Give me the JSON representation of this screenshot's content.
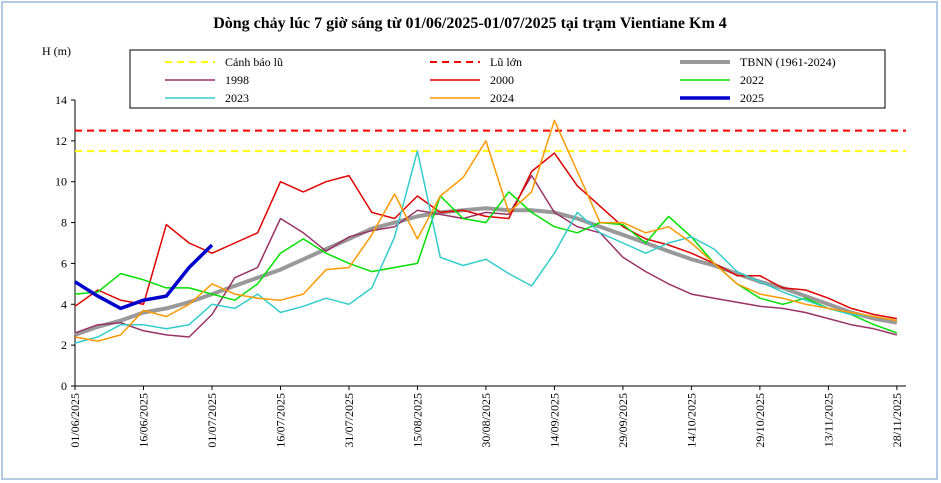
{
  "chart_data": {
    "type": "line",
    "title": "Dòng chảy lúc 7 giờ sáng từ 01/06/2025-01/07/2025 tại trạm Vientiane Km 4",
    "y_label": "H (m)",
    "x": [
      "01/06/2025",
      "06/06/2025",
      "11/06/2025",
      "16/06/2025",
      "21/06/2025",
      "26/06/2025",
      "01/07/2025",
      "06/07/2025",
      "11/07/2025",
      "16/07/2025",
      "21/07/2025",
      "26/07/2025",
      "31/07/2025",
      "05/08/2025",
      "10/08/2025",
      "15/08/2025",
      "20/08/2025",
      "25/08/2025",
      "30/08/2025",
      "04/09/2025",
      "09/09/2025",
      "14/09/2025",
      "19/09/2025",
      "24/09/2025",
      "29/09/2025",
      "04/10/2025",
      "09/10/2025",
      "14/10/2025",
      "19/10/2025",
      "24/10/2025",
      "29/10/2025",
      "03/11/2025",
      "08/11/2025",
      "13/11/2025",
      "18/11/2025",
      "23/11/2025",
      "28/11/2025"
    ],
    "xlim": [
      "01/06/2025",
      "30/11/2025"
    ],
    "xticks": [
      "01/06/2025",
      "16/06/2025",
      "01/07/2025",
      "16/07/2025",
      "31/07/2025",
      "15/08/2025",
      "30/08/2025",
      "14/09/2025",
      "29/09/2025",
      "14/10/2025",
      "29/10/2025",
      "13/11/2025",
      "28/11/2025"
    ],
    "ylim": [
      0,
      14
    ],
    "yticks": [
      0,
      2,
      4,
      6,
      8,
      10,
      12,
      14
    ],
    "series": [
      {
        "name": "Cảnh báo lũ",
        "color": "#ffff00",
        "value": 11.5,
        "dash": true,
        "width": 2
      },
      {
        "name": "Lũ lớn",
        "color": "#ff0000",
        "value": 12.5,
        "dash": true,
        "width": 2
      },
      {
        "name": "TBNN (1961-2024)",
        "color": "#999999",
        "width": 4,
        "values": [
          2.5,
          2.9,
          3.2,
          3.6,
          3.8,
          4.1,
          4.5,
          4.9,
          5.3,
          5.7,
          6.2,
          6.7,
          7.2,
          7.7,
          8.0,
          8.3,
          8.5,
          8.6,
          8.7,
          8.6,
          8.6,
          8.5,
          8.2,
          7.8,
          7.4,
          7.0,
          6.6,
          6.2,
          5.9,
          5.5,
          5.1,
          4.8,
          4.4,
          4.0,
          3.6,
          3.3,
          3.1
        ]
      },
      {
        "name": "1998",
        "color": "#993366",
        "width": 1.5,
        "values": [
          2.6,
          3.0,
          3.1,
          2.7,
          2.5,
          2.4,
          3.5,
          5.3,
          5.8,
          8.2,
          7.5,
          6.6,
          7.3,
          7.6,
          7.8,
          8.6,
          8.4,
          8.2,
          8.5,
          8.4,
          10.3,
          8.5,
          7.8,
          7.5,
          6.3,
          5.6,
          5.0,
          4.5,
          4.3,
          4.1,
          3.9,
          3.8,
          3.6,
          3.3,
          3.0,
          2.8,
          2.5
        ]
      },
      {
        "name": "2000",
        "color": "#e00000",
        "width": 1.5,
        "values": [
          3.9,
          4.7,
          4.2,
          4.0,
          7.9,
          7.0,
          6.5,
          7.0,
          7.5,
          10.0,
          9.5,
          10.0,
          10.3,
          8.5,
          8.2,
          9.3,
          8.5,
          8.6,
          8.3,
          8.2,
          10.5,
          11.4,
          9.8,
          8.8,
          7.8,
          7.2,
          6.9,
          6.5,
          6.0,
          5.4,
          5.4,
          4.8,
          4.7,
          4.3,
          3.8,
          3.5,
          3.3
        ]
      },
      {
        "name": "2022",
        "color": "#00e000",
        "width": 1.5,
        "values": [
          4.5,
          4.6,
          5.5,
          5.2,
          4.8,
          4.8,
          4.5,
          4.2,
          5.0,
          6.5,
          7.2,
          6.5,
          6.0,
          5.6,
          5.8,
          6.0,
          9.3,
          8.2,
          8.0,
          9.5,
          8.5,
          7.8,
          7.5,
          8.0,
          7.9,
          7.0,
          8.3,
          7.3,
          6.0,
          5.0,
          4.3,
          4.0,
          4.3,
          3.8,
          3.5,
          3.0,
          2.6
        ]
      },
      {
        "name": "2023",
        "color": "#33cccc",
        "width": 1.5,
        "values": [
          2.1,
          2.4,
          3.0,
          3.0,
          2.8,
          3.0,
          4.0,
          3.8,
          4.5,
          3.6,
          3.9,
          4.3,
          4.0,
          4.8,
          7.3,
          11.5,
          6.3,
          5.9,
          6.2,
          5.5,
          4.9,
          6.5,
          8.5,
          7.5,
          7.0,
          6.5,
          7.0,
          7.3,
          6.7,
          5.6,
          5.1,
          4.6,
          4.2,
          3.8,
          3.5,
          3.4,
          3.2
        ]
      },
      {
        "name": "2024",
        "color": "#ff9900",
        "width": 1.5,
        "values": [
          2.4,
          2.2,
          2.5,
          3.7,
          3.4,
          4.0,
          5.0,
          4.5,
          4.3,
          4.2,
          4.5,
          5.7,
          5.8,
          7.4,
          9.4,
          7.2,
          9.3,
          10.2,
          12.0,
          8.5,
          9.5,
          13.0,
          10.5,
          8.0,
          8.0,
          7.5,
          7.8,
          7.0,
          6.0,
          5.0,
          4.5,
          4.3,
          4.0,
          3.8,
          3.6,
          3.4,
          3.2
        ]
      },
      {
        "name": "2025",
        "color": "#0000cc",
        "width": 3.5,
        "values": [
          5.1,
          4.4,
          3.8,
          4.2,
          4.4,
          5.8,
          6.9,
          null,
          null,
          null,
          null,
          null,
          null,
          null,
          null,
          null,
          null,
          null,
          null,
          null,
          null,
          null,
          null,
          null,
          null,
          null,
          null,
          null,
          null,
          null,
          null,
          null,
          null,
          null,
          null,
          null,
          null
        ]
      }
    ]
  }
}
